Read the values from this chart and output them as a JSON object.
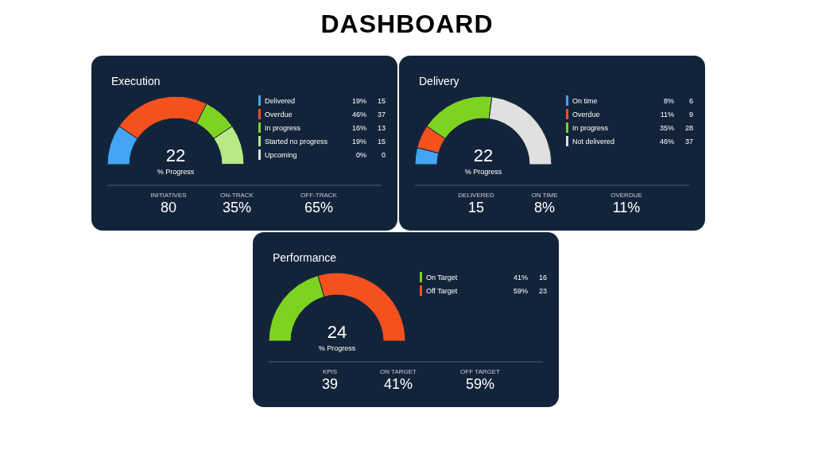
{
  "chart_data": [
    {
      "type": "other",
      "title": "DASHBOARD"
    },
    {
      "type": "donut",
      "title": "Execution",
      "categories": [
        "Delivered",
        "Overdue",
        "In progress",
        "Started no progress",
        "Upcoming"
      ],
      "values": [
        19,
        46,
        16,
        19,
        0
      ],
      "value_labels": [
        "19%",
        "46%",
        "16%",
        "19%",
        "0%"
      ],
      "colors": [
        "#42a5f5",
        "#f4511e",
        "#7ed321",
        "#b8e986",
        "#e0e0e0"
      ],
      "legend": "right",
      "annotations": [
        "22",
        "% Progress",
        "INITIATIVES",
        "80",
        "ON-TRACK",
        "35%",
        "OFF-TRACK",
        "65%",
        "15",
        "37",
        "13",
        "15",
        "0"
      ]
    },
    {
      "type": "donut",
      "title": "Delivery",
      "categories": [
        "On time",
        "Overdue",
        "In progress",
        "Not delivered"
      ],
      "values": [
        8,
        11,
        35,
        46
      ],
      "value_labels": [
        "8%",
        "11%",
        "35%",
        "46%"
      ],
      "colors": [
        "#42a5f5",
        "#f4511e",
        "#7ed321",
        "#e0e0e0"
      ],
      "legend": "right",
      "annotations": [
        "22",
        "% Progress",
        "DELIVERED",
        "15",
        "ON TIME",
        "8%",
        "OVERDUE",
        "11%",
        "6",
        "9",
        "28",
        "37"
      ]
    },
    {
      "type": "donut",
      "title": "Performance",
      "categories": [
        "On Target",
        "Off Target"
      ],
      "values": [
        41,
        59
      ],
      "value_labels": [
        "41%",
        "59%"
      ],
      "colors": [
        "#7ed321",
        "#f4511e"
      ],
      "legend": "right",
      "annotations": [
        "24",
        "% Progress",
        "KPIS",
        "39",
        "ON TARGET",
        "41%",
        "OFF TARGET",
        "59%",
        "16",
        "23"
      ]
    }
  ]
}
